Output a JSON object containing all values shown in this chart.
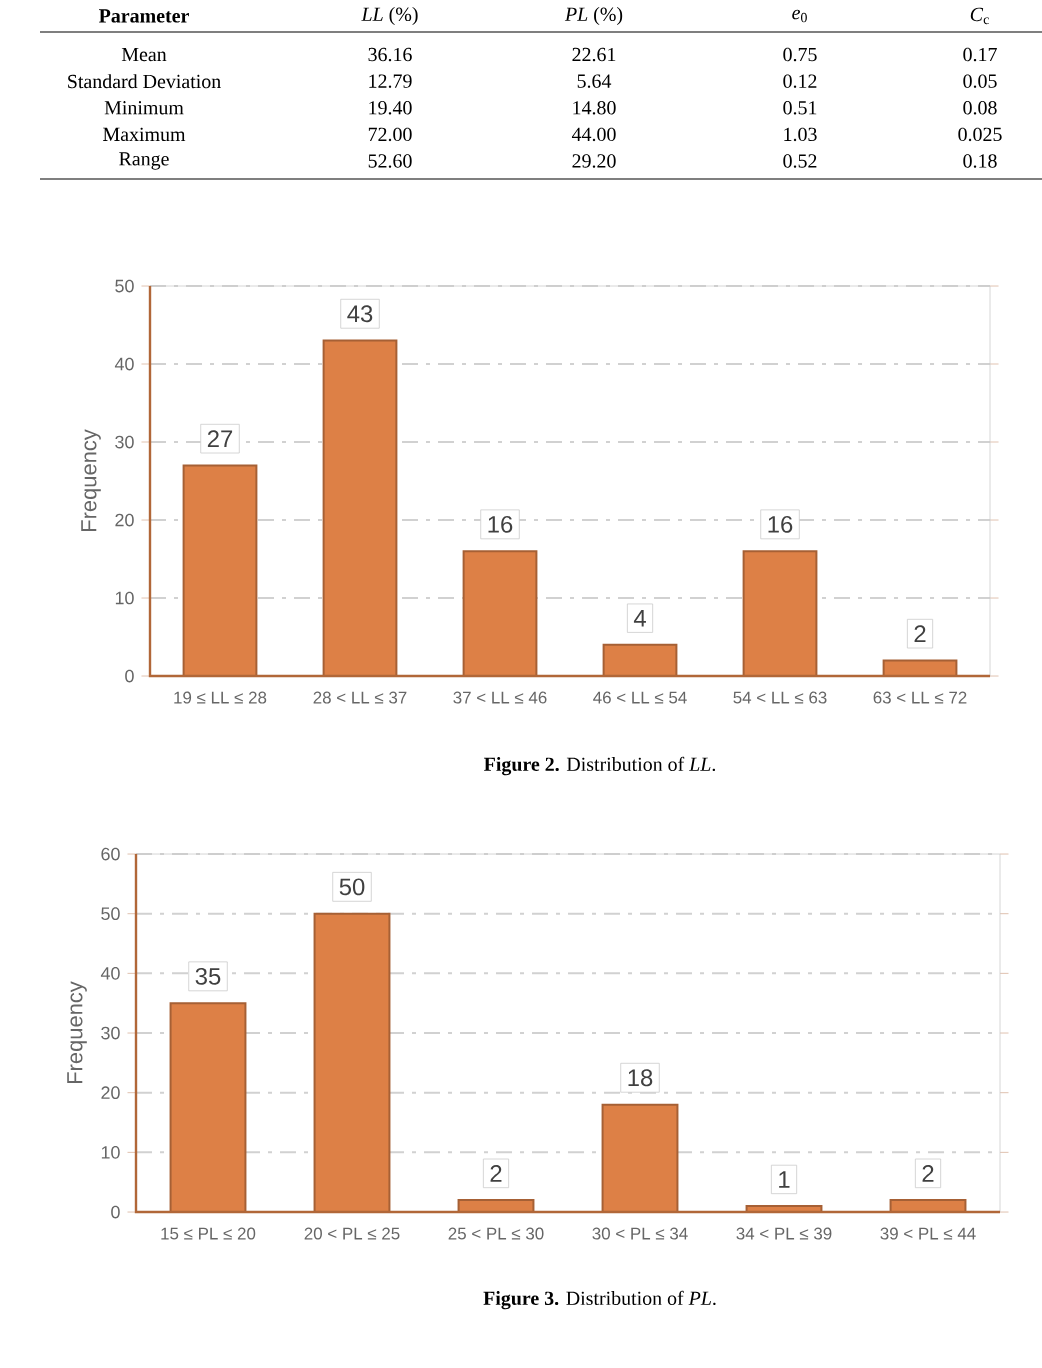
{
  "chart_data": [
    {
      "type": "other",
      "annotations": [
        "Parameter",
        "*LL* (%)",
        "*PL* (%)",
        "*e*$_{0}$",
        "*C*$_{c}$",
        "Mean",
        "36.16",
        "22.61",
        "0.75",
        "0.17",
        "Standard Deviation",
        "12.79",
        "5.64",
        "0.12",
        "0.05",
        "Minimum",
        "19.40",
        "14.80",
        "0.51",
        "0.08",
        "Maximum",
        "72.00",
        "44.00",
        "1.03",
        "0.025",
        "Range",
        "52.60",
        "29.20",
        "0.52",
        "0.18"
      ]
    },
    {
      "type": "bar",
      "ylabel": "Frequency",
      "categories": [
        "19 ≤ LL ≤ 28",
        "28 < LL ≤ 37",
        "37 < LL ≤ 46",
        "46 < LL ≤ 54",
        "54 < LL ≤ 63",
        "63 < LL ≤ 72"
      ],
      "values": [
        27,
        43,
        16,
        4,
        16,
        2
      ],
      "color": "#dd8046",
      "ylim": [
        0,
        50
      ],
      "yticks": [
        0,
        10,
        20,
        30,
        40,
        50
      ],
      "grid": "y",
      "data_labels": true,
      "annotations": [
        "**Figure 2.** Distribution of *LL*."
      ]
    },
    {
      "type": "bar",
      "ylabel": "Frequency",
      "categories": [
        "15 ≤ PL ≤ 20",
        "20 < PL ≤ 25",
        "25 < PL ≤ 30",
        "30 < PL ≤ 34",
        "34 < PL ≤ 39",
        "39 < PL ≤ 44"
      ],
      "values": [
        35,
        50,
        2,
        18,
        1,
        2
      ],
      "color": "#dd8046",
      "ylim": [
        0,
        60
      ],
      "yticks": [
        0,
        10,
        20,
        30,
        40,
        50,
        60
      ],
      "grid": "y",
      "data_labels": true,
      "annotations": [
        "**Figure 3.** Distribution of *PL*."
      ]
    }
  ]
}
